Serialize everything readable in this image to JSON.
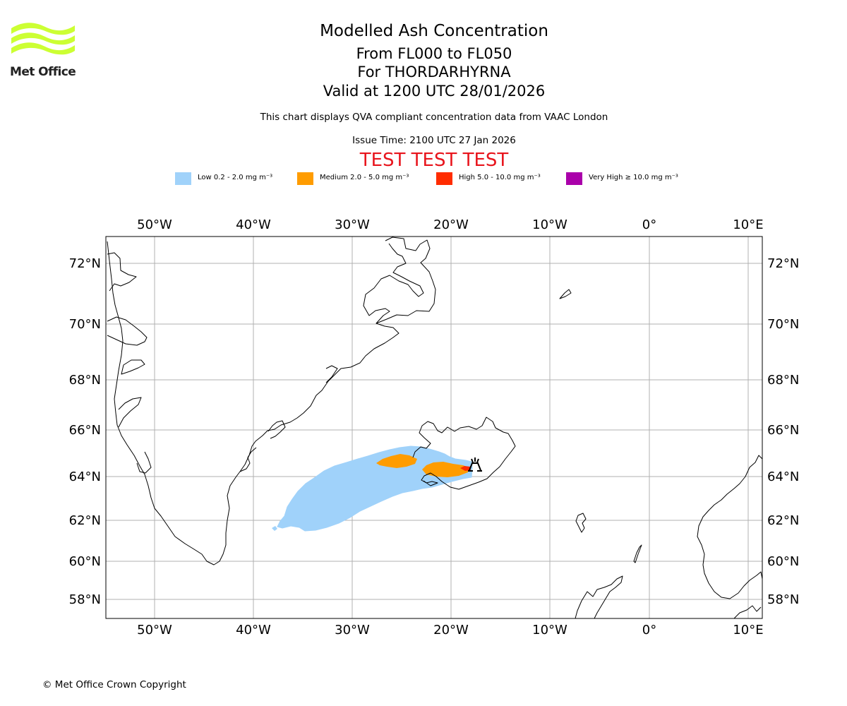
{
  "logo": {
    "wordmark": "Met Office",
    "brand_color": "#ccff33"
  },
  "titles": {
    "main": "Modelled Ash Concentration",
    "levels": "From FL000 to FL050",
    "volcano": "For THORDARHYRNA",
    "valid": "Valid at 1200 UTC 28/01/2026",
    "note": "This chart displays QVA compliant concentration data from VAAC London",
    "issue": "Issue Time: 2100 UTC 27 Jan 2026",
    "test_banner": "TEST TEST TEST"
  },
  "legend": [
    {
      "label": "Low 0.2 - 2.0 mg m⁻³",
      "color": "#a0d2fa"
    },
    {
      "label": "Medium 2.0 - 5.0 mg m⁻³",
      "color": "#ff9c00"
    },
    {
      "label": "High 5.0 - 10.0 mg m⁻³",
      "color": "#ff2c00"
    },
    {
      "label": "Very High  ≥  10.0 mg m⁻³",
      "color": "#aa00aa"
    }
  ],
  "map": {
    "lon_ticks": [
      "50°W",
      "40°W",
      "30°W",
      "20°W",
      "10°W",
      "0°",
      "10°E"
    ],
    "lat_ticks": [
      "72°N",
      "70°N",
      "68°N",
      "66°N",
      "64°N",
      "62°N",
      "60°N",
      "58°N"
    ],
    "extent": {
      "lon": [
        -55,
        11
      ],
      "lat": [
        57.3,
        72.8
      ]
    },
    "volcano_marker": "volcano"
  },
  "copyright": "© Met Office Crown Copyright"
}
